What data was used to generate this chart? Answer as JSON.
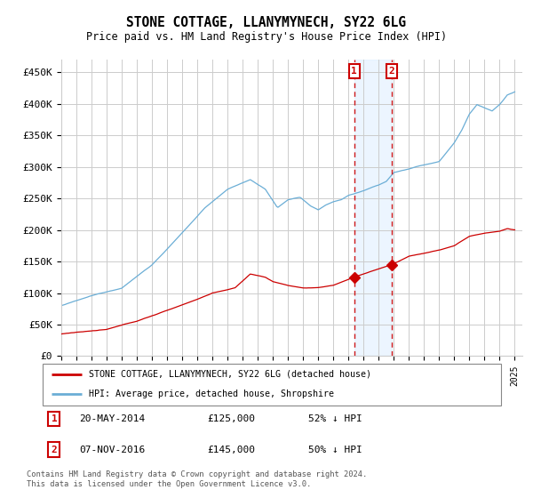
{
  "title": "STONE COTTAGE, LLANYMYNECH, SY22 6LG",
  "subtitle": "Price paid vs. HM Land Registry's House Price Index (HPI)",
  "ylim": [
    0,
    470000
  ],
  "yticks": [
    0,
    50000,
    100000,
    150000,
    200000,
    250000,
    300000,
    350000,
    400000,
    450000
  ],
  "ytick_labels": [
    "£0",
    "£50K",
    "£100K",
    "£150K",
    "£200K",
    "£250K",
    "£300K",
    "£350K",
    "£400K",
    "£450K"
  ],
  "hpi_color": "#6baed6",
  "price_color": "#cc0000",
  "sale1_date_num": 2014.38,
  "sale2_date_num": 2016.85,
  "sale1_price": 125000,
  "sale2_price": 145000,
  "legend_line1": "STONE COTTAGE, LLANYMYNECH, SY22 6LG (detached house)",
  "legend_line2": "HPI: Average price, detached house, Shropshire",
  "background_color": "#ffffff",
  "grid_color": "#cccccc",
  "shade_color": "#ddeeff",
  "footnote": "Contains HM Land Registry data © Crown copyright and database right 2024.\nThis data is licensed under the Open Government Licence v3.0."
}
